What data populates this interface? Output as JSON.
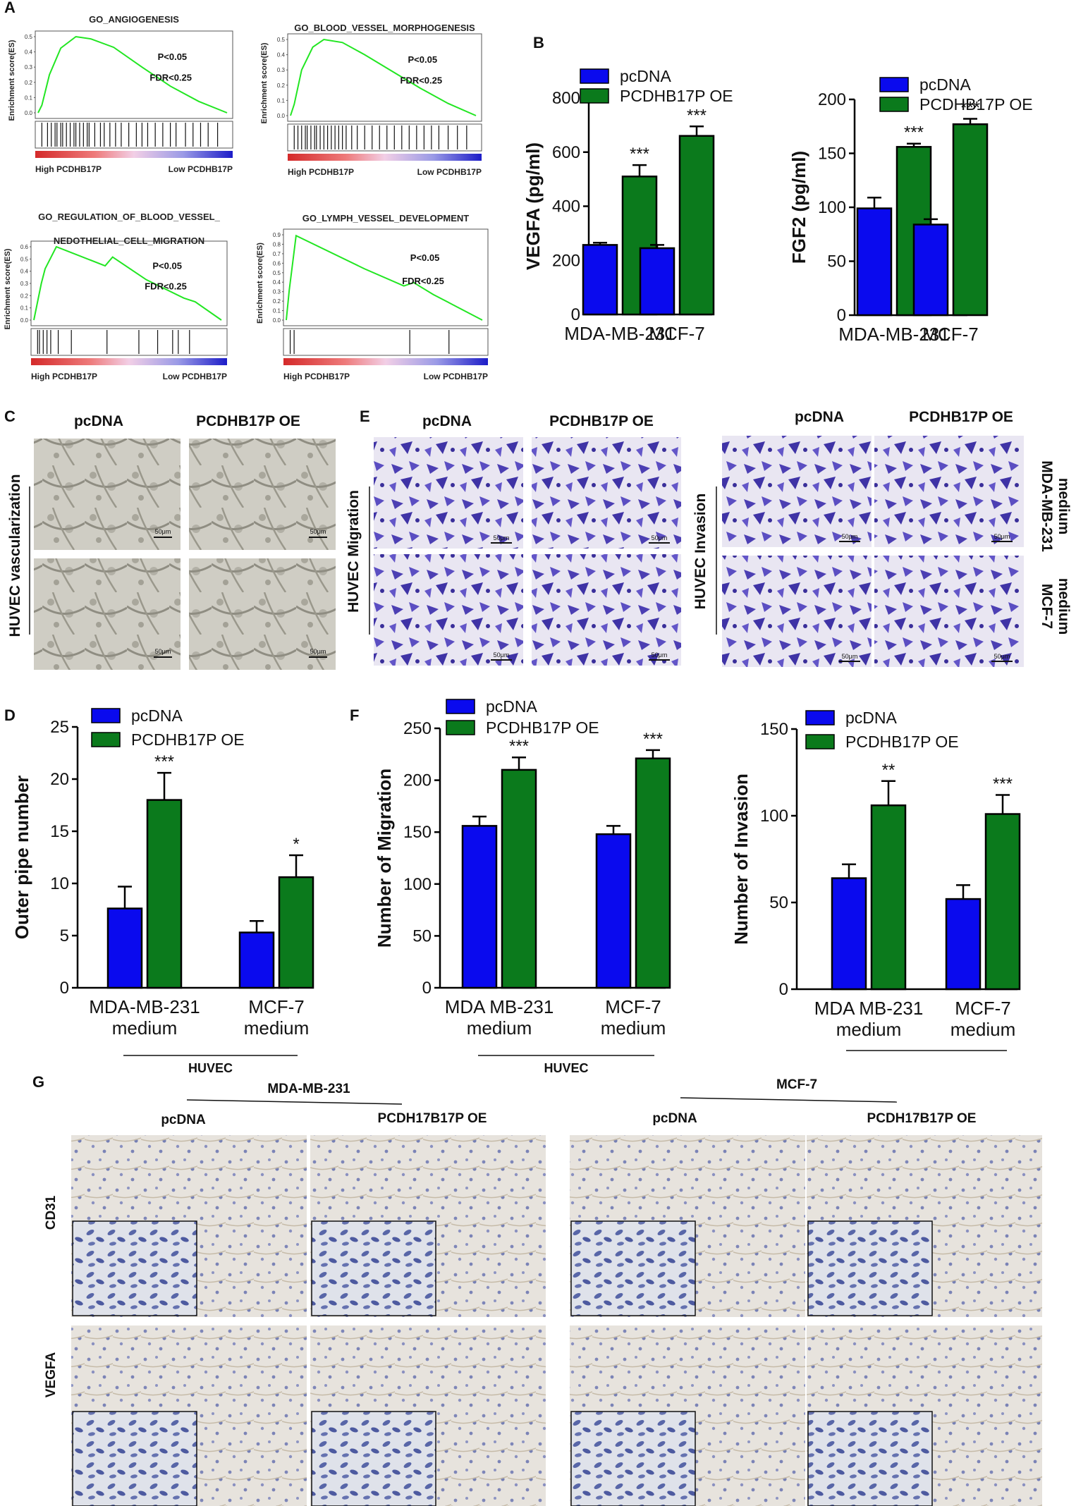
{
  "panel_labels": {
    "A": "A",
    "B": "B",
    "C": "C",
    "D": "D",
    "E": "E",
    "F": "F",
    "G": "G"
  },
  "colors": {
    "pcdna": "#0a0aee",
    "oe": "#0b7a1c",
    "gsea_curve": "#22e622",
    "heat_red": "#d62a2a",
    "heat_blue": "#2a2ad6"
  },
  "gsea": [
    {
      "title": "GO_ANGIOGENESIS",
      "ylabel": "Enrichment score(ES)",
      "yticks": [
        "0.5",
        "0.4",
        "0.3",
        "0.2",
        "0.1",
        "0.0"
      ],
      "p": "P<0.05",
      "fdr": "FDR<0.25",
      "high": "High PCDHB17P",
      "low": "Low PCDHB17P",
      "ymax": 0.5
    },
    {
      "title": "GO_BLOOD_VESSEL_MORPHOGENESIS",
      "ylabel": "Enrichment score(ES)",
      "yticks": [
        "0.5",
        "0.4",
        "0.3",
        "0.2",
        "0.1",
        "0.0"
      ],
      "p": "P<0.05",
      "fdr": "FDR<0.25",
      "high": "High PCDHB17P",
      "low": "Low PCDHB17P",
      "ymax": 0.5
    },
    {
      "title": "GO_REGULATION_OF_BLOOD_VESSEL_",
      "title2": "NEDOTHELIAL_CELL_MIGRATION",
      "ylabel": "Enrichment score(ES)",
      "yticks": [
        "0.6",
        "0.5",
        "0.4",
        "0.3",
        "0.2",
        "0.1",
        "0.0"
      ],
      "p": "P<0.05",
      "fdr": "FDR<0.25",
      "high": "High PCDHB17P",
      "low": "Low PCDHB17P",
      "ymax": 0.6
    },
    {
      "title": "GO_LYMPH_VESSEL_DEVELOPMENT",
      "ylabel": "Enrichment score(ES)",
      "yticks": [
        "0.9",
        "0.8",
        "0.7",
        "0.6",
        "0.5",
        "0.4",
        "0.3",
        "0.2",
        "0.1",
        "0.0"
      ],
      "p": "P<0.05",
      "fdr": "FDR<0.25",
      "high": "High PCDHB17P",
      "low": "Low PCDHB17P",
      "ymax": 0.9
    }
  ],
  "panel_c": {
    "col1": "pcDNA",
    "col2": "PCDHB17P OE",
    "side": "HUVEC vascularization",
    "scale": "50μm"
  },
  "panel_e": {
    "col1": "pcDNA",
    "col2": "PCDHB17P OE",
    "col3": "pcDNA",
    "col4": "PCDHB17P OE",
    "side1": "HUVEC Migration",
    "side2": "HUVEC Invasion",
    "row1a": "MDA-MB-231",
    "row1b": "medium",
    "row2a": "MCF-7",
    "row2b": "medium",
    "scale": "50μm"
  },
  "panel_g": {
    "group1": "MDA-MB-231",
    "group2": "MCF-7",
    "col1": "pcDNA",
    "col2": "PCDH17B17P OE",
    "col3": "pcDNA",
    "col4": "PCDH17B17P OE",
    "row1": "CD31",
    "row2": "VEGFA"
  },
  "chart_data": [
    {
      "id": "b1",
      "type": "bar",
      "legend": [
        "pcDNA",
        "PCDHB17P OE"
      ],
      "ylabel": "VEGFA (pg/ml)",
      "ylim": [
        0,
        800
      ],
      "yticks": [
        0,
        200,
        400,
        600,
        800
      ],
      "categories": [
        [
          "MDA-MB-231"
        ],
        [
          "MCF-7"
        ]
      ],
      "series": [
        {
          "name": "pcDNA",
          "values": [
            257,
            245
          ],
          "errors": [
            8,
            12
          ]
        },
        {
          "name": "PCDHB17P OE",
          "values": [
            510,
            660
          ],
          "errors": [
            42,
            35
          ]
        }
      ],
      "significance": [
        "***",
        "***"
      ],
      "group_label": ""
    },
    {
      "id": "b2",
      "type": "bar",
      "legend": [
        "pcDNA",
        "PCDHB17P OE"
      ],
      "ylabel": "FGF2 (pg/ml)",
      "ylim": [
        0,
        200
      ],
      "yticks": [
        0,
        50,
        100,
        150,
        200
      ],
      "categories": [
        [
          "MDA-MB-231"
        ],
        [
          "MCF-7"
        ]
      ],
      "series": [
        {
          "name": "pcDNA",
          "values": [
            99,
            84
          ],
          "errors": [
            10,
            5
          ]
        },
        {
          "name": "PCDHB17P OE",
          "values": [
            156,
            177
          ],
          "errors": [
            3,
            5
          ]
        }
      ],
      "significance": [
        "***",
        "***"
      ],
      "group_label": ""
    },
    {
      "id": "d",
      "type": "bar",
      "legend": [
        "pcDNA",
        "PCDHB17P OE"
      ],
      "ylabel": "Outer pipe number",
      "ylim": [
        0,
        25
      ],
      "yticks": [
        0,
        5,
        10,
        15,
        20,
        25
      ],
      "categories": [
        [
          "MDA-MB-231",
          "medium"
        ],
        [
          "MCF-7",
          "medium"
        ]
      ],
      "series": [
        {
          "name": "pcDNA",
          "values": [
            7.6,
            5.3
          ],
          "errors": [
            2.1,
            1.1
          ]
        },
        {
          "name": "PCDHB17P OE",
          "values": [
            18,
            10.6
          ],
          "errors": [
            2.6,
            2.1
          ]
        }
      ],
      "significance": [
        "***",
        "*"
      ],
      "group_label": "HUVEC"
    },
    {
      "id": "f1",
      "type": "bar",
      "legend": [
        "pcDNA",
        "PCDHB17P OE"
      ],
      "ylabel": "Number of Migration",
      "ylim": [
        0,
        250
      ],
      "yticks": [
        0,
        50,
        100,
        150,
        200,
        250
      ],
      "categories": [
        [
          "MDA MB-231",
          "medium"
        ],
        [
          "MCF-7",
          "medium"
        ]
      ],
      "series": [
        {
          "name": "pcDNA",
          "values": [
            156,
            148
          ],
          "errors": [
            9,
            8
          ]
        },
        {
          "name": "PCDHB17P OE",
          "values": [
            210,
            221
          ],
          "errors": [
            12,
            8
          ]
        }
      ],
      "significance": [
        "***",
        "***"
      ],
      "group_label": "HUVEC"
    },
    {
      "id": "f2",
      "type": "bar",
      "legend": [
        "pcDNA",
        "PCDHB17P OE"
      ],
      "ylabel": "Number of Invasion",
      "ylim": [
        0,
        150
      ],
      "yticks": [
        0,
        50,
        100,
        150
      ],
      "categories": [
        [
          "MDA MB-231",
          "medium"
        ],
        [
          "MCF-7",
          "medium"
        ]
      ],
      "series": [
        {
          "name": "pcDNA",
          "values": [
            64,
            52
          ],
          "errors": [
            8,
            8
          ]
        },
        {
          "name": "PCDHB17P OE",
          "values": [
            106,
            101
          ],
          "errors": [
            14,
            11
          ]
        }
      ],
      "significance": [
        "**",
        "***"
      ],
      "group_label": ""
    }
  ]
}
